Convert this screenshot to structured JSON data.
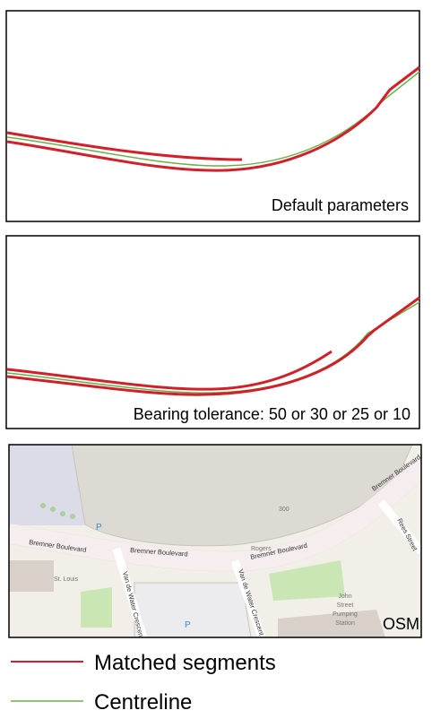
{
  "panels": [
    {
      "label": "Default parameters"
    },
    {
      "label": "Bearing tolerance: 50 or 30 or 25 or 10"
    },
    {
      "label": "OSM",
      "map_labels": [
        "Bremner Boulevard",
        "Bremner Boulevard",
        "Bremner Boulevard",
        "Bremner Boulevard",
        "Van de Water Crescent",
        "Van de Water Crescent",
        "Rees Street",
        "300",
        "Rogers",
        "John",
        "Street",
        "Pumping",
        "Station",
        "St. Louis",
        "P",
        "P"
      ]
    }
  ],
  "legend": [
    {
      "label": "Matched segments"
    },
    {
      "label": "Centreline"
    }
  ]
}
